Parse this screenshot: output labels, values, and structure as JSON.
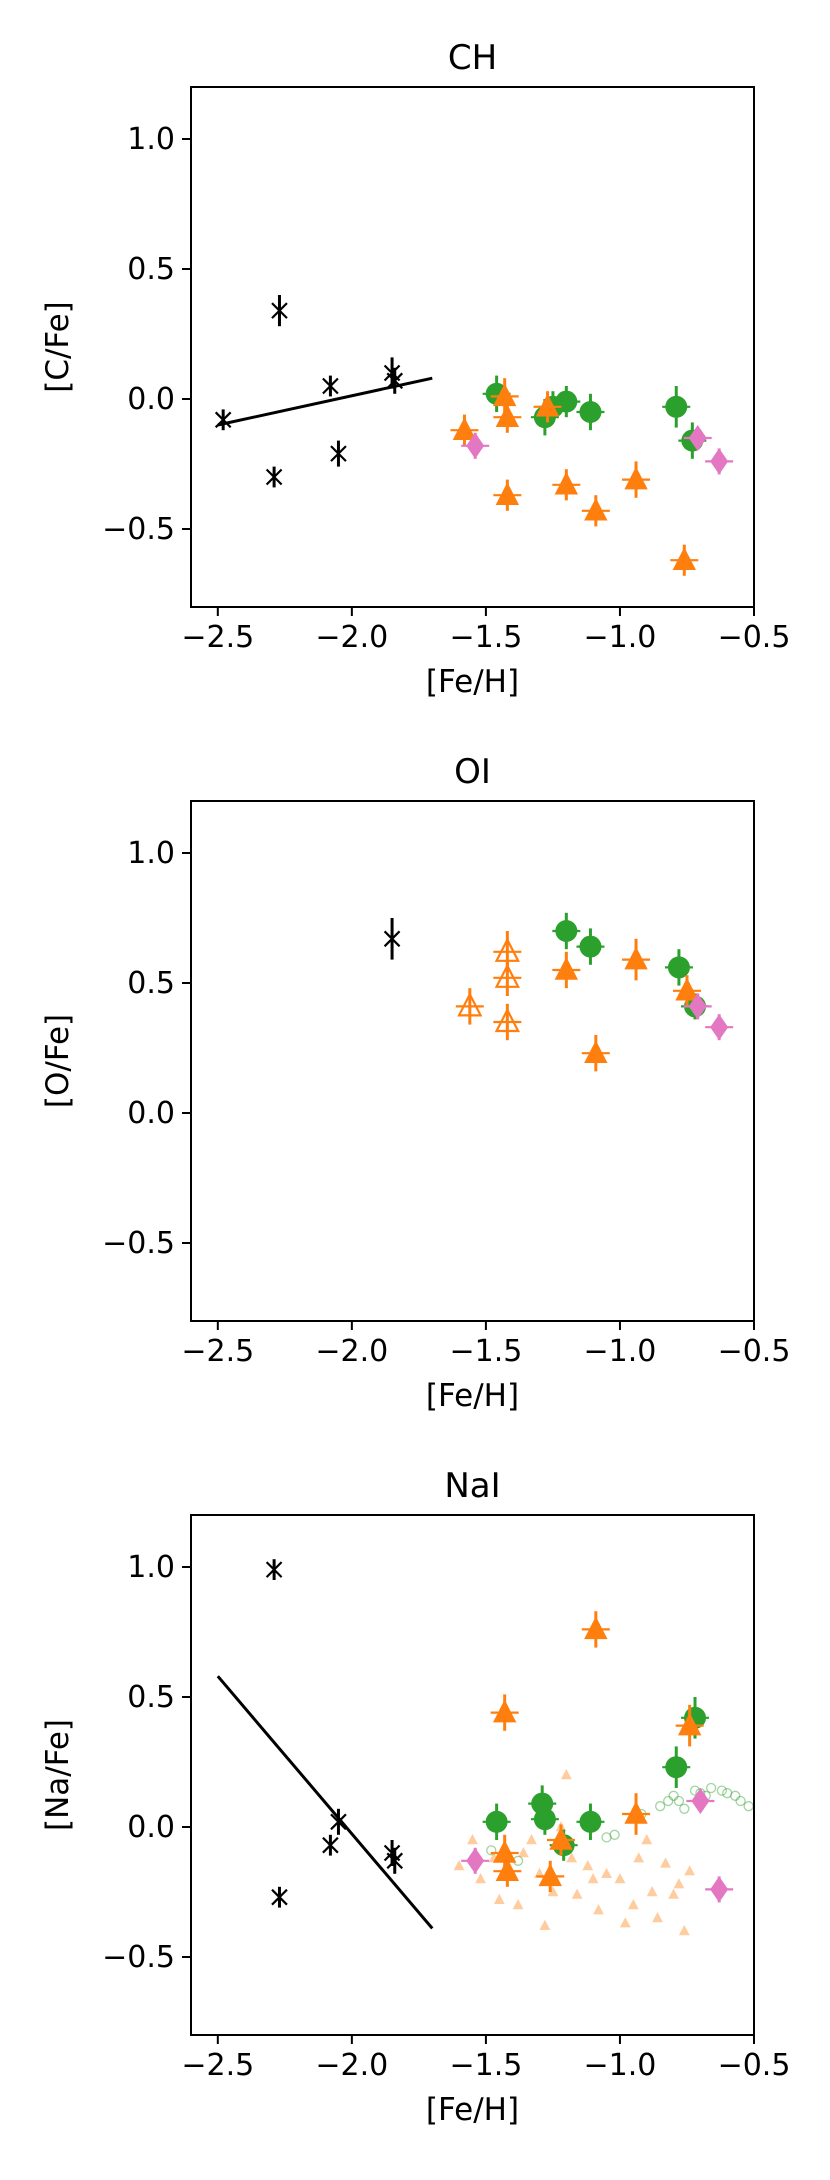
{
  "chart_data": [
    {
      "type": "scatter",
      "title": "CH",
      "xlabel": "[Fe/H]",
      "ylabel": "[C/Fe]",
      "xlim": [
        -2.6,
        -0.5
      ],
      "ylim": [
        -0.8,
        1.2
      ],
      "xticks": [
        -2.5,
        -2.0,
        -1.5,
        -1.0,
        -0.5
      ],
      "yticks": [
        -0.5,
        0.0,
        0.5,
        1.0
      ],
      "grid": false,
      "fit_line": {
        "x": [
          -2.5,
          -1.7
        ],
        "y": [
          -0.1,
          0.08
        ],
        "color": "#000000"
      },
      "series": [
        {
          "marker": "star",
          "color": "#000000",
          "points": [
            [
              -2.48,
              -0.08,
              0.04
            ],
            [
              -2.27,
              0.34,
              0.06
            ],
            [
              -2.29,
              -0.3,
              0.04
            ],
            [
              -2.08,
              0.05,
              0.04
            ],
            [
              -2.05,
              -0.21,
              0.05
            ],
            [
              -1.85,
              0.1,
              0.06
            ],
            [
              -1.84,
              0.07,
              0.05
            ]
          ]
        },
        {
          "marker": "circle",
          "color": "#2ca02c",
          "points": [
            [
              -1.46,
              0.02,
              0.07
            ],
            [
              -1.28,
              -0.07,
              0.07
            ],
            [
              -1.25,
              -0.03,
              0.06
            ],
            [
              -1.2,
              -0.01,
              0.06
            ],
            [
              -1.11,
              -0.05,
              0.07
            ],
            [
              -0.79,
              -0.03,
              0.08
            ],
            [
              -0.73,
              -0.16,
              0.07
            ]
          ]
        },
        {
          "marker": "triangle",
          "color": "#ff7f0e",
          "points": [
            [
              -1.58,
              -0.12,
              0.06
            ],
            [
              -1.43,
              0.01,
              0.07
            ],
            [
              -1.42,
              -0.07,
              0.06
            ],
            [
              -1.42,
              -0.37,
              0.06
            ],
            [
              -1.27,
              -0.03,
              0.06
            ],
            [
              -1.2,
              -0.33,
              0.06
            ],
            [
              -1.09,
              -0.43,
              0.06
            ],
            [
              -0.94,
              -0.31,
              0.07
            ],
            [
              -0.76,
              -0.62,
              0.06
            ]
          ]
        },
        {
          "marker": "diamond",
          "color": "#e377c2",
          "points": [
            [
              -1.54,
              -0.18,
              0.05
            ],
            [
              -0.71,
              -0.15,
              0.04
            ],
            [
              -0.63,
              -0.24,
              0.05
            ]
          ]
        }
      ]
    },
    {
      "type": "scatter",
      "title": "OI",
      "xlabel": "[Fe/H]",
      "ylabel": "[O/Fe]",
      "xlim": [
        -2.6,
        -0.5
      ],
      "ylim": [
        -0.8,
        1.2
      ],
      "xticks": [
        -2.5,
        -2.0,
        -1.5,
        -1.0,
        -0.5
      ],
      "yticks": [
        -0.5,
        0.0,
        0.5,
        1.0
      ],
      "grid": false,
      "series": [
        {
          "marker": "star",
          "color": "#000000",
          "points": [
            [
              -1.85,
              0.67,
              0.08
            ]
          ]
        },
        {
          "marker": "circle",
          "color": "#2ca02c",
          "points": [
            [
              -1.2,
              0.7,
              0.07
            ],
            [
              -1.11,
              0.64,
              0.07
            ],
            [
              -0.78,
              0.56,
              0.07
            ],
            [
              -0.72,
              0.41,
              0.05
            ]
          ]
        },
        {
          "marker": "triangle",
          "color": "#ff7f0e",
          "points": [
            [
              -1.2,
              0.55,
              0.07
            ],
            [
              -1.09,
              0.23,
              0.07
            ],
            [
              -0.94,
              0.59,
              0.08
            ],
            [
              -0.75,
              0.47,
              0.06
            ]
          ]
        },
        {
          "marker": "triangle-open",
          "color": "#ff7f0e",
          "points": [
            [
              -1.56,
              0.41,
              0.07
            ],
            [
              -1.42,
              0.62,
              0.08
            ],
            [
              -1.42,
              0.52,
              0.07
            ],
            [
              -1.42,
              0.35,
              0.07
            ]
          ]
        },
        {
          "marker": "diamond",
          "color": "#e377c2",
          "points": [
            [
              -0.71,
              0.41,
              0.05
            ],
            [
              -0.63,
              0.33,
              0.05
            ]
          ]
        }
      ]
    },
    {
      "type": "scatter",
      "title": "NaI",
      "xlabel": "[Fe/H]",
      "ylabel": "[Na/Fe]",
      "xlim": [
        -2.6,
        -0.5
      ],
      "ylim": [
        -0.8,
        1.2
      ],
      "xticks": [
        -2.5,
        -2.0,
        -1.5,
        -1.0,
        -0.5
      ],
      "yticks": [
        -0.5,
        0.0,
        0.5,
        1.0
      ],
      "grid": false,
      "fit_line": {
        "x": [
          -2.5,
          -1.7
        ],
        "y": [
          0.58,
          -0.39
        ],
        "color": "#000000"
      },
      "background": [
        {
          "marker": "circle-small",
          "color": "#2ca02c",
          "points": [
            [
              -1.48,
              -0.09
            ],
            [
              -1.42,
              -0.12
            ],
            [
              -1.38,
              -0.13
            ],
            [
              -1.05,
              -0.04
            ],
            [
              -1.02,
              -0.03
            ],
            [
              -0.92,
              0.05
            ],
            [
              -0.85,
              0.08
            ],
            [
              -0.82,
              0.1
            ],
            [
              -0.8,
              0.12
            ],
            [
              -0.78,
              0.1
            ],
            [
              -0.76,
              0.07
            ],
            [
              -0.72,
              0.14
            ],
            [
              -0.7,
              0.13
            ],
            [
              -0.68,
              0.12
            ],
            [
              -0.66,
              0.15
            ],
            [
              -0.62,
              0.14
            ],
            [
              -0.6,
              0.13
            ],
            [
              -0.57,
              0.12
            ],
            [
              -0.55,
              0.1
            ],
            [
              -0.52,
              0.08
            ]
          ]
        },
        {
          "marker": "triangle-small",
          "color": "#ff7f0e",
          "points": [
            [
              -1.6,
              -0.15
            ],
            [
              -1.55,
              -0.05
            ],
            [
              -1.52,
              -0.2
            ],
            [
              -1.47,
              -0.12
            ],
            [
              -1.45,
              -0.28
            ],
            [
              -1.38,
              -0.3
            ],
            [
              -1.36,
              -0.1
            ],
            [
              -1.33,
              -0.05
            ],
            [
              -1.3,
              -0.18
            ],
            [
              -1.28,
              -0.38
            ],
            [
              -1.25,
              -0.25
            ],
            [
              -1.22,
              0.0
            ],
            [
              -1.2,
              0.2
            ],
            [
              -1.18,
              -0.12
            ],
            [
              -1.16,
              -0.26
            ],
            [
              -1.12,
              -0.15
            ],
            [
              -1.1,
              -0.2
            ],
            [
              -1.08,
              -0.32
            ],
            [
              -1.05,
              -0.18
            ],
            [
              -1.0,
              -0.2
            ],
            [
              -0.98,
              -0.37
            ],
            [
              -0.95,
              -0.3
            ],
            [
              -0.93,
              -0.12
            ],
            [
              -0.9,
              -0.05
            ],
            [
              -0.88,
              -0.25
            ],
            [
              -0.86,
              -0.35
            ],
            [
              -0.83,
              -0.14
            ],
            [
              -0.8,
              -0.26
            ],
            [
              -0.78,
              -0.22
            ],
            [
              -0.76,
              -0.4
            ],
            [
              -0.74,
              -0.17
            ]
          ]
        }
      ],
      "series": [
        {
          "marker": "star",
          "color": "#000000",
          "points": [
            [
              -2.29,
              0.99,
              0.04
            ],
            [
              -2.27,
              -0.27,
              0.04
            ],
            [
              -2.08,
              -0.07,
              0.04
            ],
            [
              -2.05,
              0.02,
              0.05
            ],
            [
              -1.85,
              -0.1,
              0.05
            ],
            [
              -1.84,
              -0.13,
              0.05
            ]
          ]
        },
        {
          "marker": "circle",
          "color": "#2ca02c",
          "points": [
            [
              -1.46,
              0.02,
              0.07
            ],
            [
              -1.29,
              0.09,
              0.07
            ],
            [
              -1.28,
              0.03,
              0.06
            ],
            [
              -1.21,
              -0.07,
              0.06
            ],
            [
              -1.11,
              0.02,
              0.07
            ],
            [
              -0.79,
              0.23,
              0.08
            ],
            [
              -0.72,
              0.42,
              0.08
            ]
          ]
        },
        {
          "marker": "triangle",
          "color": "#ff7f0e",
          "points": [
            [
              -1.43,
              0.44,
              0.07
            ],
            [
              -1.43,
              -0.1,
              0.07
            ],
            [
              -1.42,
              -0.17,
              0.06
            ],
            [
              -1.26,
              -0.19,
              0.06
            ],
            [
              -1.22,
              -0.05,
              0.06
            ],
            [
              -1.09,
              0.76,
              0.07
            ],
            [
              -0.94,
              0.05,
              0.08
            ],
            [
              -0.74,
              0.39,
              0.08
            ]
          ]
        },
        {
          "marker": "diamond",
          "color": "#e377c2",
          "points": [
            [
              -1.54,
              -0.13,
              0.05
            ],
            [
              -0.7,
              0.1,
              0.04
            ],
            [
              -0.63,
              -0.24,
              0.05
            ]
          ]
        }
      ]
    }
  ]
}
